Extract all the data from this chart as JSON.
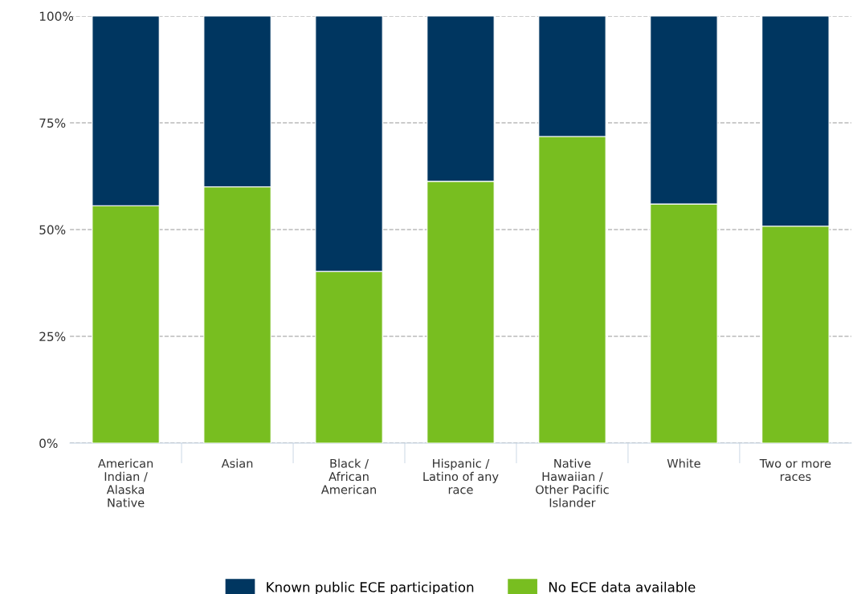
{
  "chart_data": {
    "type": "bar",
    "stacked": true,
    "categories": [
      "American\nIndian /\nAlaska\nNative",
      "Asian",
      "Black /\nAfrican\nAmerican",
      "Hispanic /\nLatino of any\nrace",
      "Native\nHawaiian /\nOther Pacific\nIslander",
      "White",
      "Two or more\nraces"
    ],
    "series": [
      {
        "name": "No ECE data available",
        "color": "#78be20",
        "values": [
          55.6,
          60.0,
          40.2,
          61.3,
          71.8,
          56.0,
          50.8
        ]
      },
      {
        "name": "Known public ECE participation",
        "color": "#003660",
        "values": [
          44.4,
          40.0,
          59.8,
          38.7,
          28.2,
          44.0,
          49.2
        ]
      }
    ],
    "ylim": [
      0,
      100
    ],
    "yticks": [
      {
        "value": 0,
        "label": "0%"
      },
      {
        "value": 25,
        "label": "25%"
      },
      {
        "value": 50,
        "label": "50%"
      },
      {
        "value": 75,
        "label": "75%"
      },
      {
        "value": 100,
        "label": "100%"
      }
    ],
    "grid": "y",
    "legend": "bottom"
  }
}
